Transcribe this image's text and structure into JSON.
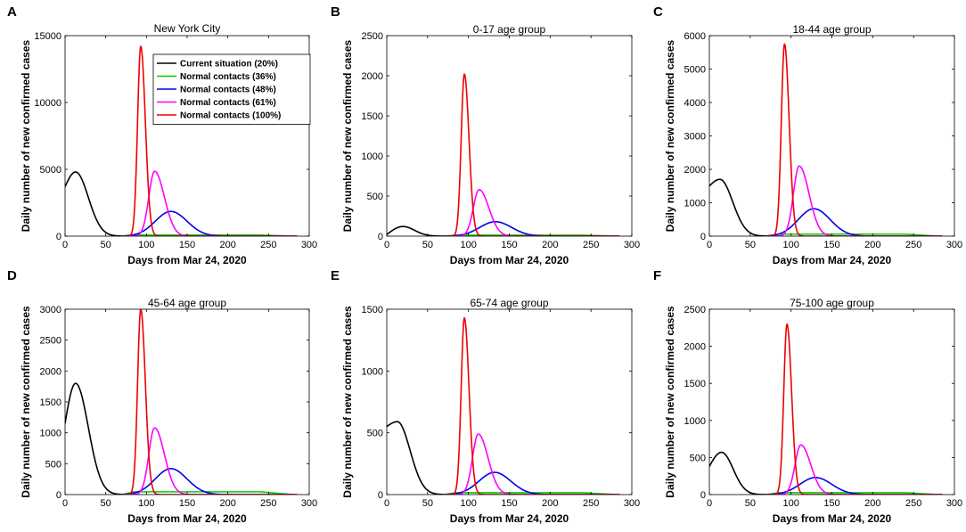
{
  "figure": {
    "caption": ""
  },
  "chart_data": [
    {
      "panel": "A",
      "type": "line",
      "title": "New York City",
      "xlabel": "Days from Mar 24, 2020",
      "ylabel": "Daily number of new confirmed cases",
      "xlim": [
        0,
        300
      ],
      "ylim": [
        0,
        15000
      ],
      "xticks": [
        0,
        50,
        100,
        150,
        200,
        250,
        300
      ],
      "yticks": [
        0,
        5000,
        10000,
        15000
      ],
      "legend": {
        "position": "top-right",
        "entries": [
          "Current situation (20%)",
          "Normal contacts (36%)",
          "Normal contacts (48%)",
          "Normal contacts (61%)",
          "Normal contacts (100%)"
        ]
      },
      "series": [
        {
          "name": "Current situation (20%)",
          "color": "#000000",
          "type": "gamma",
          "peak_x": 13,
          "peak_y": 4800,
          "start_y": 3700,
          "end_x": 80,
          "wr": 22
        },
        {
          "name": "Normal contacts (36%)",
          "color": "#00d000",
          "type": "flat",
          "start_x": 70,
          "level": 80,
          "end_x": 280
        },
        {
          "name": "Normal contacts (48%)",
          "color": "#0000ee",
          "type": "peak",
          "start_x": 70,
          "peak_x": 130,
          "peak_y": 1850,
          "wl": 27,
          "wr": 28,
          "end_x": 285
        },
        {
          "name": "Normal contacts (61%)",
          "color": "#ff00ff",
          "type": "peak",
          "start_x": 70,
          "peak_x": 110,
          "peak_y": 4850,
          "wl": 10,
          "wr": 17,
          "end_x": 285
        },
        {
          "name": "Normal contacts (100%)",
          "color": "#ee0000",
          "type": "peak",
          "start_x": 70,
          "peak_x": 93,
          "peak_y": 14200,
          "wl": 5.5,
          "wr": 8,
          "end_x": 285
        }
      ]
    },
    {
      "panel": "B",
      "type": "line",
      "title": "0-17 age group",
      "xlabel": "Days from Mar 24, 2020",
      "ylabel": "Daily number of new confirmed cases",
      "xlim": [
        0,
        300
      ],
      "ylim": [
        0,
        2500
      ],
      "xticks": [
        0,
        50,
        100,
        150,
        200,
        250,
        300
      ],
      "yticks": [
        0,
        500,
        1000,
        1500,
        2000,
        2500
      ],
      "series": [
        {
          "name": "Current situation (20%)",
          "color": "#000000",
          "type": "gamma",
          "peak_x": 20,
          "peak_y": 120,
          "start_y": 20,
          "end_x": 80,
          "wr": 20
        },
        {
          "name": "Normal contacts (36%)",
          "color": "#00d000",
          "type": "flat",
          "start_x": 70,
          "level": 12,
          "end_x": 280
        },
        {
          "name": "Normal contacts (48%)",
          "color": "#0000ee",
          "type": "peak",
          "start_x": 70,
          "peak_x": 133,
          "peak_y": 180,
          "wl": 27,
          "wr": 28,
          "end_x": 285
        },
        {
          "name": "Normal contacts (61%)",
          "color": "#ff00ff",
          "type": "peak",
          "start_x": 70,
          "peak_x": 113,
          "peak_y": 580,
          "wl": 10,
          "wr": 17,
          "end_x": 285
        },
        {
          "name": "Normal contacts (100%)",
          "color": "#ee0000",
          "type": "peak",
          "start_x": 70,
          "peak_x": 95,
          "peak_y": 2020,
          "wl": 5.5,
          "wr": 8,
          "end_x": 285
        }
      ]
    },
    {
      "panel": "C",
      "type": "line",
      "title": "18-44 age group",
      "xlabel": "Days from Mar 24, 2020",
      "ylabel": "Daily number of new confirmed cases",
      "xlim": [
        0,
        300
      ],
      "ylim": [
        0,
        6000
      ],
      "xticks": [
        0,
        50,
        100,
        150,
        200,
        250,
        300
      ],
      "yticks": [
        0,
        1000,
        2000,
        3000,
        4000,
        5000,
        6000
      ],
      "series": [
        {
          "name": "Current situation (20%)",
          "color": "#000000",
          "type": "gamma",
          "peak_x": 13,
          "peak_y": 1700,
          "start_y": 1500,
          "end_x": 80,
          "wr": 22
        },
        {
          "name": "Normal contacts (36%)",
          "color": "#00d000",
          "type": "flat",
          "start_x": 70,
          "level": 60,
          "end_x": 280
        },
        {
          "name": "Normal contacts (48%)",
          "color": "#0000ee",
          "type": "peak",
          "start_x": 70,
          "peak_x": 128,
          "peak_y": 820,
          "wl": 27,
          "wr": 28,
          "end_x": 285
        },
        {
          "name": "Normal contacts (61%)",
          "color": "#ff00ff",
          "type": "peak",
          "start_x": 70,
          "peak_x": 110,
          "peak_y": 2100,
          "wl": 10,
          "wr": 17,
          "end_x": 285
        },
        {
          "name": "Normal contacts (100%)",
          "color": "#ee0000",
          "type": "peak",
          "start_x": 70,
          "peak_x": 92,
          "peak_y": 5750,
          "wl": 5.5,
          "wr": 8,
          "end_x": 285
        }
      ]
    },
    {
      "panel": "D",
      "type": "line",
      "title": "45-64 age group",
      "xlabel": "Days from Mar 24, 2020",
      "ylabel": "Daily number of new confirmed cases",
      "xlim": [
        0,
        300
      ],
      "ylim": [
        0,
        3000
      ],
      "xticks": [
        0,
        50,
        100,
        150,
        200,
        250,
        300
      ],
      "yticks": [
        0,
        500,
        1000,
        1500,
        2000,
        2500,
        3000
      ],
      "series": [
        {
          "name": "Current situation (20%)",
          "color": "#000000",
          "type": "gamma",
          "peak_x": 13,
          "peak_y": 1800,
          "start_y": 1150,
          "end_x": 80,
          "wr": 22
        },
        {
          "name": "Normal contacts (36%)",
          "color": "#00d000",
          "type": "flat",
          "start_x": 70,
          "level": 45,
          "end_x": 280
        },
        {
          "name": "Normal contacts (48%)",
          "color": "#0000ee",
          "type": "peak",
          "start_x": 70,
          "peak_x": 130,
          "peak_y": 420,
          "wl": 27,
          "wr": 28,
          "end_x": 285
        },
        {
          "name": "Normal contacts (61%)",
          "color": "#ff00ff",
          "type": "peak",
          "start_x": 70,
          "peak_x": 110,
          "peak_y": 1080,
          "wl": 10,
          "wr": 17,
          "end_x": 285
        },
        {
          "name": "Normal contacts (100%)",
          "color": "#ee0000",
          "type": "peak",
          "start_x": 70,
          "peak_x": 93,
          "peak_y": 3000,
          "wl": 5.5,
          "wr": 8,
          "end_x": 285
        }
      ]
    },
    {
      "panel": "E",
      "type": "line",
      "title": "65-74 age group",
      "xlabel": "Days from Mar 24, 2020",
      "ylabel": "Daily number of new confirmed cases",
      "xlim": [
        0,
        300
      ],
      "ylim": [
        0,
        1500
      ],
      "xticks": [
        0,
        50,
        100,
        150,
        200,
        250,
        300
      ],
      "yticks": [
        0,
        500,
        1000,
        1500
      ],
      "series": [
        {
          "name": "Current situation (20%)",
          "color": "#000000",
          "type": "gamma",
          "peak_x": 13,
          "peak_y": 590,
          "start_y": 550,
          "end_x": 80,
          "wr": 22
        },
        {
          "name": "Normal contacts (36%)",
          "color": "#00d000",
          "type": "flat",
          "start_x": 70,
          "level": 15,
          "end_x": 280
        },
        {
          "name": "Normal contacts (48%)",
          "color": "#0000ee",
          "type": "peak",
          "start_x": 70,
          "peak_x": 132,
          "peak_y": 180,
          "wl": 27,
          "wr": 28,
          "end_x": 285
        },
        {
          "name": "Normal contacts (61%)",
          "color": "#ff00ff",
          "type": "peak",
          "start_x": 70,
          "peak_x": 112,
          "peak_y": 490,
          "wl": 10,
          "wr": 17,
          "end_x": 285
        },
        {
          "name": "Normal contacts (100%)",
          "color": "#ee0000",
          "type": "peak",
          "start_x": 70,
          "peak_x": 95,
          "peak_y": 1430,
          "wl": 5.5,
          "wr": 8,
          "end_x": 285
        }
      ]
    },
    {
      "panel": "F",
      "type": "line",
      "title": "75-100 age group",
      "xlabel": "Days from Mar 24, 2020",
      "ylabel": "Daily number of new confirmed cases",
      "xlim": [
        0,
        300
      ],
      "ylim": [
        0,
        2500
      ],
      "xticks": [
        0,
        50,
        100,
        150,
        200,
        250,
        300
      ],
      "yticks": [
        0,
        500,
        1000,
        1500,
        2000,
        2500
      ],
      "series": [
        {
          "name": "Current situation (20%)",
          "color": "#000000",
          "type": "gamma",
          "peak_x": 15,
          "peak_y": 570,
          "start_y": 380,
          "end_x": 80,
          "wr": 20
        },
        {
          "name": "Normal contacts (36%)",
          "color": "#00d000",
          "type": "flat",
          "start_x": 70,
          "level": 25,
          "end_x": 280
        },
        {
          "name": "Normal contacts (48%)",
          "color": "#0000ee",
          "type": "peak",
          "start_x": 70,
          "peak_x": 130,
          "peak_y": 230,
          "wl": 27,
          "wr": 28,
          "end_x": 285
        },
        {
          "name": "Normal contacts (61%)",
          "color": "#ff00ff",
          "type": "peak",
          "start_x": 70,
          "peak_x": 112,
          "peak_y": 670,
          "wl": 10,
          "wr": 17,
          "end_x": 285
        },
        {
          "name": "Normal contacts (100%)",
          "color": "#ee0000",
          "type": "peak",
          "start_x": 70,
          "peak_x": 95,
          "peak_y": 2300,
          "wl": 5.5,
          "wr": 8,
          "end_x": 285
        }
      ]
    }
  ]
}
